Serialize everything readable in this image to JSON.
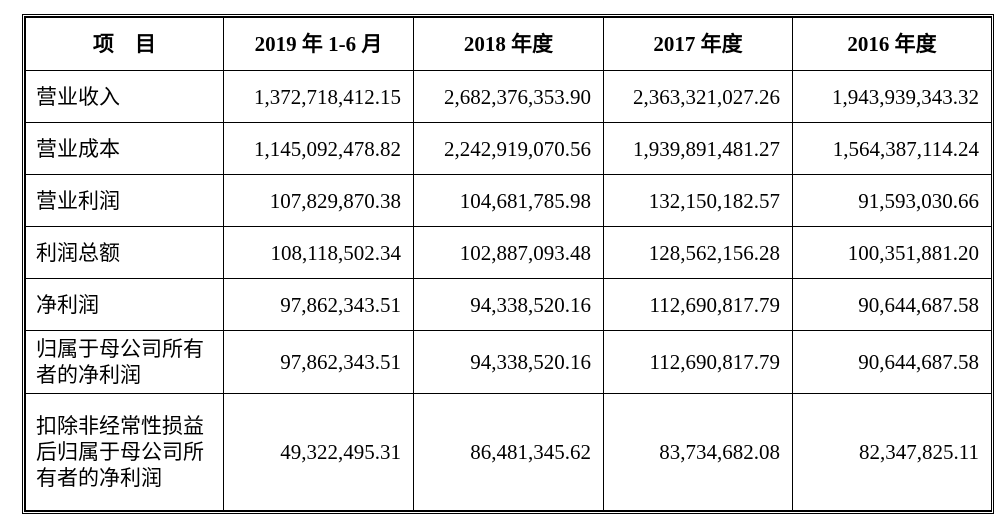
{
  "table": {
    "headers": [
      "项　目",
      "2019 年 1-6 月",
      "2018 年度",
      "2017 年度",
      "2016 年度"
    ],
    "rows": [
      {
        "label": "营业收入",
        "values": [
          "1,372,718,412.15",
          "2,682,376,353.90",
          "2,363,321,027.26",
          "1,943,939,343.32"
        ]
      },
      {
        "label": "营业成本",
        "values": [
          "1,145,092,478.82",
          "2,242,919,070.56",
          "1,939,891,481.27",
          "1,564,387,114.24"
        ]
      },
      {
        "label": "营业利润",
        "values": [
          "107,829,870.38",
          "104,681,785.98",
          "132,150,182.57",
          "91,593,030.66"
        ]
      },
      {
        "label": "利润总额",
        "values": [
          "108,118,502.34",
          "102,887,093.48",
          "128,562,156.28",
          "100,351,881.20"
        ]
      },
      {
        "label": "净利润",
        "values": [
          "97,862,343.51",
          "94,338,520.16",
          "112,690,817.79",
          "90,644,687.58"
        ]
      },
      {
        "label": "归属于母公司所有者的净利润",
        "values": [
          "97,862,343.51",
          "94,338,520.16",
          "112,690,817.79",
          "90,644,687.58"
        ]
      },
      {
        "label": "扣除非经常性损益后归属于母公司所有者的净利润",
        "values": [
          "49,322,495.31",
          "86,481,345.62",
          "83,734,682.08",
          "82,347,825.11"
        ]
      }
    ]
  }
}
